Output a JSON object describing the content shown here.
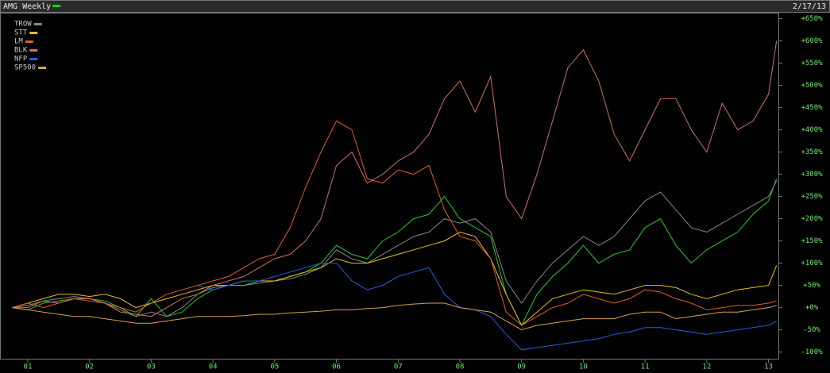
{
  "chart_data": {
    "type": "line",
    "date": "2/17/13",
    "x": [
      0.75,
      1,
      1.25,
      1.5,
      1.75,
      2,
      2.25,
      2.5,
      2.75,
      3,
      3.25,
      3.5,
      3.75,
      4,
      4.25,
      4.5,
      4.75,
      5,
      5.25,
      5.5,
      5.75,
      6,
      6.25,
      6.5,
      6.75,
      7,
      7.25,
      7.5,
      7.75,
      8,
      8.25,
      8.5,
      8.75,
      9,
      9.25,
      9.5,
      9.75,
      10,
      10.25,
      10.5,
      10.75,
      11,
      11.25,
      11.5,
      11.75,
      12,
      12.25,
      12.5,
      12.75,
      13,
      13.13
    ],
    "xlim": [
      0.55,
      13.16
    ],
    "xticks": [
      {
        "value": 1,
        "label": "01"
      },
      {
        "value": 2,
        "label": "02"
      },
      {
        "value": 3,
        "label": "03"
      },
      {
        "value": 4,
        "label": "04"
      },
      {
        "value": 5,
        "label": "05"
      },
      {
        "value": 6,
        "label": "06"
      },
      {
        "value": 7,
        "label": "07"
      },
      {
        "value": 8,
        "label": "08"
      },
      {
        "value": 9,
        "label": "09"
      },
      {
        "value": 10,
        "label": "10"
      },
      {
        "value": 11,
        "label": "11"
      },
      {
        "value": 12,
        "label": "12"
      },
      {
        "value": 13,
        "label": "13"
      }
    ],
    "ylim": [
      -115,
      660
    ],
    "yticks": [
      {
        "value": -100,
        "label": "-100%"
      },
      {
        "value": -50,
        "label": "-50%"
      },
      {
        "value": 0,
        "label": "+0%"
      },
      {
        "value": 50,
        "label": "+50%"
      },
      {
        "value": 100,
        "label": "+100%"
      },
      {
        "value": 150,
        "label": "+150%"
      },
      {
        "value": 200,
        "label": "+200%"
      },
      {
        "value": 250,
        "label": "+250%"
      },
      {
        "value": 300,
        "label": "+300%"
      },
      {
        "value": 350,
        "label": "+350%"
      },
      {
        "value": 400,
        "label": "+400%"
      },
      {
        "value": 450,
        "label": "+450%"
      },
      {
        "value": 500,
        "label": "+500%"
      },
      {
        "value": 550,
        "label": "+550%"
      },
      {
        "value": 600,
        "label": "+600%"
      },
      {
        "value": 650,
        "label": "+650%"
      }
    ],
    "grid": false,
    "legend": "top-left",
    "series": [
      {
        "name": "AMG Weekly",
        "color": "#22cc22",
        "values": [
          0,
          -5,
          10,
          15,
          20,
          20,
          15,
          0,
          -20,
          20,
          -20,
          -10,
          20,
          40,
          50,
          50,
          60,
          60,
          70,
          80,
          100,
          140,
          120,
          110,
          150,
          170,
          200,
          210,
          250,
          200,
          180,
          160,
          30,
          -40,
          30,
          70,
          100,
          140,
          100,
          120,
          130,
          180,
          200,
          140,
          100,
          130,
          150,
          170,
          210,
          240,
          290
        ]
      },
      {
        "name": "TROW",
        "color": "#888888",
        "values": [
          0,
          0,
          15,
          20,
          25,
          20,
          10,
          -5,
          -20,
          -10,
          -20,
          0,
          30,
          45,
          50,
          50,
          55,
          60,
          65,
          75,
          90,
          130,
          110,
          100,
          120,
          140,
          160,
          170,
          200,
          190,
          200,
          170,
          60,
          10,
          60,
          100,
          130,
          160,
          140,
          160,
          200,
          240,
          260,
          220,
          180,
          170,
          190,
          210,
          230,
          250,
          285
        ]
      },
      {
        "name": "STT",
        "color": "#e8c020",
        "values": [
          0,
          10,
          20,
          30,
          30,
          25,
          30,
          20,
          0,
          10,
          20,
          30,
          40,
          50,
          50,
          60,
          60,
          60,
          70,
          80,
          90,
          110,
          100,
          100,
          110,
          120,
          130,
          140,
          150,
          170,
          160,
          110,
          30,
          -40,
          -10,
          20,
          30,
          40,
          35,
          30,
          40,
          50,
          50,
          45,
          30,
          20,
          30,
          40,
          45,
          50,
          95
        ]
      },
      {
        "name": "LM",
        "color": "#e06020",
        "values": [
          0,
          10,
          0,
          10,
          20,
          15,
          10,
          0,
          -10,
          10,
          30,
          40,
          50,
          60,
          70,
          90,
          110,
          120,
          180,
          270,
          350,
          420,
          400,
          290,
          280,
          310,
          300,
          320,
          220,
          160,
          150,
          110,
          -10,
          -40,
          -20,
          0,
          10,
          30,
          20,
          10,
          20,
          40,
          35,
          20,
          10,
          -5,
          0,
          5,
          5,
          10,
          15
        ]
      },
      {
        "name": "BLK",
        "color": "#d07060",
        "values": [
          0,
          5,
          15,
          10,
          20,
          20,
          10,
          -10,
          -15,
          -20,
          0,
          20,
          30,
          50,
          60,
          70,
          90,
          110,
          120,
          150,
          200,
          320,
          350,
          280,
          300,
          330,
          350,
          390,
          470,
          510,
          440,
          520,
          250,
          200,
          300,
          420,
          540,
          580,
          510,
          390,
          330,
          400,
          470,
          470,
          400,
          350,
          460,
          400,
          420,
          480,
          600
        ]
      },
      {
        "name": "NFP",
        "color": "#2060e0",
        "values": [
          null,
          null,
          null,
          null,
          null,
          null,
          null,
          null,
          null,
          null,
          null,
          null,
          50,
          40,
          50,
          60,
          60,
          70,
          80,
          90,
          100,
          100,
          60,
          40,
          50,
          70,
          80,
          90,
          30,
          0,
          -5,
          -20,
          -60,
          -95,
          -90,
          -85,
          -80,
          -75,
          -70,
          -60,
          -55,
          -45,
          -45,
          -50,
          -55,
          -60,
          -55,
          -50,
          -45,
          -40,
          -30
        ]
      },
      {
        "name": "SP500",
        "color": "#d8a050",
        "values": [
          0,
          -5,
          -10,
          -15,
          -20,
          -20,
          -25,
          -30,
          -35,
          -35,
          -30,
          -25,
          -20,
          -20,
          -20,
          -18,
          -15,
          -15,
          -12,
          -10,
          -8,
          -5,
          -5,
          -2,
          0,
          5,
          8,
          10,
          10,
          0,
          -5,
          -10,
          -30,
          -50,
          -40,
          -35,
          -30,
          -25,
          -25,
          -25,
          -15,
          -10,
          -10,
          -25,
          -20,
          -15,
          -10,
          -10,
          -5,
          0,
          5
        ]
      }
    ]
  }
}
